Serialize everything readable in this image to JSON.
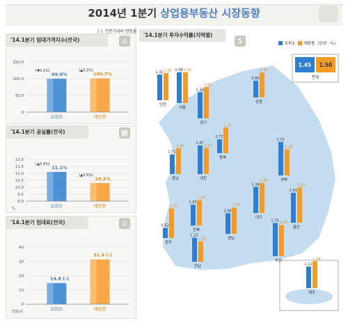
{
  "header": {
    "title_prefix": "2014년 1분기 ",
    "title_main": "상업용부동산 시장동향"
  },
  "legend_note": "( ): 전분기대비 변동률",
  "colors": {
    "office": "#2f7fd0",
    "retail": "#f59a23",
    "map": "#c4dcef",
    "label_office": "#3f78b8",
    "label_retail": "#e08a1d"
  },
  "chart_data": [
    {
      "type": "bar",
      "title": "'14.1분기 임대가격지수(전국)",
      "categories": [
        "오피스",
        "매장용"
      ],
      "values": [
        99.9,
        100.7
      ],
      "value_labels": [
        "99.9%",
        "100.7%"
      ],
      "change_labels": [
        "(▼0.1%)",
        "(▲0.3%)"
      ],
      "yticks": [
        0,
        50,
        100,
        150
      ],
      "ytick_labels": [
        "0",
        "50.0",
        "100.0",
        "150.0"
      ],
      "ylim": [
        0,
        150
      ]
    },
    {
      "type": "bar",
      "title": "'14.1분기 공실률(전국)",
      "categories": [
        "오피스",
        "매장용"
      ],
      "values": [
        11.1,
        10.3
      ],
      "value_labels": [
        "11.1%",
        "10.3%"
      ],
      "change_labels": [
        "(▲0.4%)",
        "(▲0.5%)"
      ],
      "yticks": [
        9,
        9.5,
        10,
        10.5,
        11,
        11.5,
        12
      ],
      "ytick_labels": [
        "9.0",
        "9.5",
        "10.0",
        "10.5",
        "11.0",
        "11.5",
        "12.0"
      ],
      "ylim": [
        9,
        12
      ],
      "unit": "%"
    },
    {
      "type": "bar",
      "title": "'14.1분기 임대료(전국)",
      "categories": [
        "오피스",
        "매장용"
      ],
      "values": [
        14.8,
        31.4
      ],
      "value_labels": [
        "14.8 (-)",
        "31.4 (-)"
      ],
      "yticks": [
        0,
        10,
        20,
        30,
        40
      ],
      "ytick_labels": [
        "0",
        "10",
        "20",
        "30",
        "40"
      ],
      "ylim": [
        0,
        40
      ],
      "unit": "천원/㎡"
    },
    {
      "type": "bar",
      "title": "'14.1분기 투자수익률(지역별)",
      "legend": [
        "오피스",
        "매장용"
      ],
      "unit_note": "(단위 : %)",
      "national": {
        "label": "전국",
        "office": 1.45,
        "retail": 1.5
      },
      "regions": [
        {
          "name": "인천",
          "office": 1.32,
          "retail": 1.4
        },
        {
          "name": "서울",
          "office": 1.58,
          "retail": 1.58
        },
        {
          "name": "경기",
          "office": 1.34,
          "retail": 1.61
        },
        {
          "name": "강원",
          "office": 0.86,
          "retail": 1.28
        },
        {
          "name": "충북",
          "office": 0.71,
          "retail": 1.31
        },
        {
          "name": "충남",
          "office": 1.01,
          "retail": 1.33
        },
        {
          "name": "대전",
          "office": 1.47,
          "retail": 1.33
        },
        {
          "name": "경북",
          "office": 1.72,
          "retail": 1.34
        },
        {
          "name": "대구",
          "office": 1.34,
          "retail": 1.54
        },
        {
          "name": "전북",
          "office": 1.07,
          "retail": 1.3
        },
        {
          "name": "경남",
          "office": 1.06,
          "retail": 1.35
        },
        {
          "name": "울산",
          "office": 1.54,
          "retail": 1.81
        },
        {
          "name": "광주",
          "office": 0.52,
          "retail": 1.52
        },
        {
          "name": "부산",
          "office": 1.7,
          "retail": 1.6
        },
        {
          "name": "전남",
          "office": 1.23,
          "retail": 1.05
        },
        {
          "name": "제주",
          "office": 1.11,
          "retail": 1.38
        }
      ]
    }
  ]
}
